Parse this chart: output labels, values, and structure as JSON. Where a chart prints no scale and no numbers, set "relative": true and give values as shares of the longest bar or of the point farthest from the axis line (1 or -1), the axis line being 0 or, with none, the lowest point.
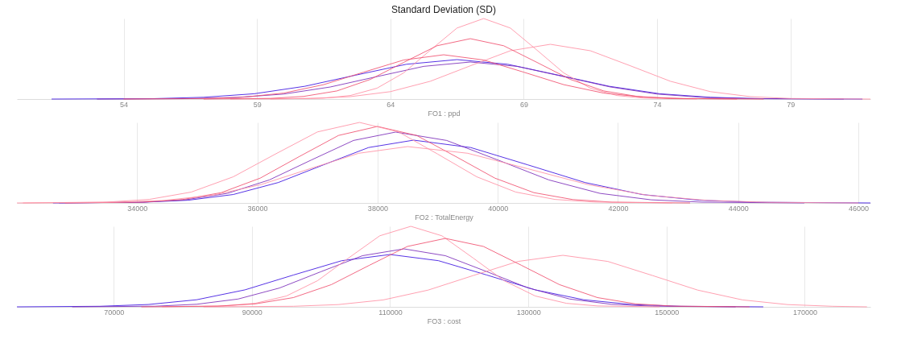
{
  "chart_data": [
    {
      "type": "line",
      "title": "Standard Deviation (SD)",
      "xlabel": "FO1 : ppd",
      "relative": true,
      "grid": "x",
      "xlim": [
        50,
        82
      ],
      "xticks": [
        54,
        59,
        64,
        69,
        74,
        79
      ],
      "series": [
        {
          "color": "#3a10e0",
          "x": [
            51.3,
            55.1,
            57.0,
            58.9,
            60.8,
            62.7,
            64.6,
            66.5,
            68.4,
            70.3,
            72.2,
            74.1,
            76.0,
            77.9,
            81.7
          ],
          "values": [
            0,
            0.005,
            0.022,
            0.066,
            0.159,
            0.297,
            0.432,
            0.49,
            0.432,
            0.297,
            0.159,
            0.066,
            0.022,
            0.005,
            0
          ]
        },
        {
          "color": "#7a2bb8",
          "x": [
            53,
            56.5,
            58.25,
            60,
            61.75,
            63.5,
            65.25,
            67,
            68.75,
            70.5,
            72.25,
            74,
            75.75,
            77.5,
            81
          ],
          "values": [
            0,
            0.005,
            0.02,
            0.062,
            0.15,
            0.279,
            0.406,
            0.46,
            0.406,
            0.279,
            0.15,
            0.062,
            0.02,
            0.005,
            0
          ]
        },
        {
          "color": "#ff8fa3",
          "x": [
            59.5,
            61.5,
            62.5,
            63.5,
            64.5,
            65.5,
            66.5,
            67.5,
            68.5,
            69.5,
            70.5,
            71.5,
            72.5,
            73.5,
            75.5
          ],
          "values": [
            0,
            0.011,
            0.044,
            0.135,
            0.325,
            0.607,
            0.882,
            1,
            0.882,
            0.607,
            0.325,
            0.135,
            0.044,
            0.011,
            0
          ]
        },
        {
          "color": "#ff8fa3",
          "x": [
            58,
            61,
            62.5,
            64,
            65.5,
            67,
            68.5,
            70,
            71.5,
            73,
            74.5,
            76,
            77.5,
            79,
            82
          ],
          "values": [
            0,
            0.007,
            0.03,
            0.092,
            0.221,
            0.413,
            0.6,
            0.68,
            0.6,
            0.413,
            0.221,
            0.092,
            0.03,
            0.007,
            0
          ]
        },
        {
          "color": "#f0506e",
          "x": [
            57,
            59.5,
            60.75,
            62,
            63.25,
            64.5,
            65.75,
            67,
            68.25,
            69.5,
            70.75,
            72,
            73.25,
            74.5,
            77
          ],
          "values": [
            0,
            0.008,
            0.033,
            0.101,
            0.244,
            0.455,
            0.662,
            0.75,
            0.662,
            0.455,
            0.244,
            0.101,
            0.033,
            0.008,
            0
          ]
        },
        {
          "color": "#f0506e",
          "x": [
            54,
            57,
            58.5,
            60,
            61.5,
            63,
            64.5,
            66,
            67.5,
            69,
            70.5,
            72,
            73.5,
            75,
            78
          ],
          "values": [
            0,
            0.006,
            0.024,
            0.074,
            0.179,
            0.334,
            0.485,
            0.55,
            0.485,
            0.334,
            0.179,
            0.074,
            0.024,
            0.006,
            0
          ]
        }
      ]
    },
    {
      "type": "line",
      "xlabel": "FO2 : TotalEnergy",
      "relative": true,
      "grid": "x",
      "xlim": [
        32000,
        46200
      ],
      "xticks": [
        34000,
        36000,
        38000,
        40000,
        42000,
        44000,
        46000
      ],
      "series": [
        {
          "color": "#3a10e0",
          "x": [
            32600,
            34100,
            34850,
            35600,
            36350,
            37100,
            37850,
            38600,
            39550,
            40500,
            41450,
            42400,
            43350,
            44300,
            46200
          ],
          "values": [
            0,
            0.009,
            0.034,
            0.105,
            0.254,
            0.473,
            0.688,
            0.78,
            0.688,
            0.473,
            0.254,
            0.105,
            0.034,
            0.009,
            0
          ]
        },
        {
          "color": "#7a2bb8",
          "x": [
            32700,
            34100,
            34800,
            35500,
            36200,
            36900,
            37600,
            38300,
            39150,
            40000,
            40850,
            41700,
            42550,
            43400,
            45100
          ],
          "values": [
            0,
            0.01,
            0.039,
            0.119,
            0.286,
            0.534,
            0.776,
            0.88,
            0.776,
            0.534,
            0.286,
            0.119,
            0.039,
            0.01,
            0
          ]
        },
        {
          "color": "#f0506e",
          "x": [
            32800,
            34100,
            34750,
            35400,
            36050,
            36700,
            37350,
            38000,
            38650,
            39300,
            39950,
            40600,
            41250,
            41900,
            43200
          ],
          "values": [
            0,
            0.01,
            0.042,
            0.128,
            0.309,
            0.577,
            0.838,
            0.95,
            0.838,
            0.577,
            0.309,
            0.128,
            0.042,
            0.01,
            0
          ]
        },
        {
          "color": "#ff8fa3",
          "x": [
            32100,
            33500,
            34200,
            34900,
            35600,
            36300,
            37000,
            37700,
            38350,
            39000,
            39650,
            40300,
            40950,
            41600,
            42900
          ],
          "values": [
            0,
            0.011,
            0.044,
            0.135,
            0.325,
            0.607,
            0.882,
            1,
            0.882,
            0.607,
            0.325,
            0.135,
            0.044,
            0.011,
            0
          ]
        },
        {
          "color": "#ff8fa3",
          "x": [
            32000,
            33625,
            34438,
            35250,
            36063,
            36875,
            37688,
            38500,
            39500,
            40500,
            41500,
            42500,
            43500,
            44500,
            46000
          ],
          "values": [
            0,
            0.008,
            0.031,
            0.095,
            0.228,
            0.425,
            0.617,
            0.7,
            0.617,
            0.425,
            0.228,
            0.095,
            0.031,
            0.008,
            0
          ]
        }
      ]
    },
    {
      "type": "line",
      "xlabel": "FO3 : cost",
      "relative": true,
      "grid": "x",
      "xlim": [
        56000,
        179500
      ],
      "xticks": [
        70000,
        90000,
        110000,
        130000,
        150000,
        170000
      ],
      "series": [
        {
          "color": "#3a10e0",
          "x": [
            56000,
            68000,
            75000,
            82000,
            89000,
            96000,
            103000,
            110000,
            117000,
            124000,
            131000,
            138000,
            145000,
            152000,
            164000
          ],
          "values": [
            0,
            0.007,
            0.029,
            0.088,
            0.211,
            0.395,
            0.573,
            0.65,
            0.573,
            0.395,
            0.211,
            0.088,
            0.029,
            0.007,
            0
          ]
        },
        {
          "color": "#7a2bb8",
          "x": [
            64000,
            76000,
            82000,
            88000,
            94000,
            100000,
            106000,
            112000,
            118000,
            124000,
            130000,
            136000,
            142000,
            148000,
            160000
          ],
          "values": [
            0,
            0.008,
            0.032,
            0.097,
            0.234,
            0.437,
            0.635,
            0.72,
            0.635,
            0.437,
            0.234,
            0.097,
            0.032,
            0.008,
            0
          ]
        },
        {
          "color": "#ff8fa3",
          "x": [
            77000,
            86000,
            90500,
            95000,
            99500,
            104000,
            108500,
            113000,
            117500,
            122000,
            126500,
            131000,
            135500,
            140000,
            149000
          ],
          "values": [
            0,
            0.011,
            0.044,
            0.135,
            0.325,
            0.607,
            0.882,
            1,
            0.882,
            0.607,
            0.325,
            0.135,
            0.044,
            0.011,
            0
          ]
        },
        {
          "color": "#ff8fa3",
          "x": [
            83000,
            96000,
            102500,
            109000,
            115500,
            122000,
            128500,
            135000,
            141500,
            148000,
            154500,
            161000,
            167500,
            174000,
            179000
          ],
          "values": [
            0,
            0.007,
            0.028,
            0.086,
            0.208,
            0.388,
            0.564,
            0.64,
            0.564,
            0.388,
            0.208,
            0.086,
            0.028,
            0.007,
            0
          ]
        },
        {
          "color": "#f0506e",
          "x": [
            74000,
            85000,
            90500,
            96000,
            101500,
            107000,
            112500,
            118000,
            123500,
            129000,
            134500,
            140000,
            145500,
            151000,
            162000
          ],
          "values": [
            0,
            0.009,
            0.037,
            0.115,
            0.276,
            0.516,
            0.75,
            0.85,
            0.75,
            0.516,
            0.276,
            0.115,
            0.037,
            0.009,
            0
          ]
        }
      ]
    }
  ]
}
